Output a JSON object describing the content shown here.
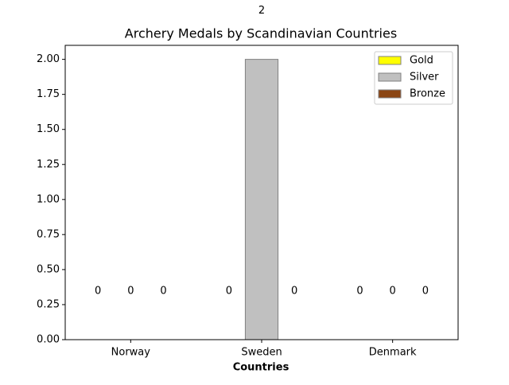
{
  "chart_data": {
    "type": "bar",
    "title": "Archery Medals by Scandinavian Countries",
    "xlabel": "Countries",
    "categories": [
      "Norway",
      "Sweden",
      "Denmark"
    ],
    "series": [
      {
        "name": "Gold",
        "color": "#ffff00",
        "values": [
          0,
          0,
          0
        ]
      },
      {
        "name": "Silver",
        "color": "#c0c0c0",
        "values": [
          0,
          2,
          0
        ]
      },
      {
        "name": "Bronze",
        "color": "#8b4513",
        "values": [
          0,
          0,
          0
        ]
      }
    ],
    "ylim": [
      0,
      2.1
    ],
    "yticks": [
      {
        "value": 0,
        "label": "0.00"
      },
      {
        "value": 0.25,
        "label": "0.25"
      },
      {
        "value": 0.5,
        "label": "0.50"
      },
      {
        "value": 0.75,
        "label": "0.75"
      },
      {
        "value": 1,
        "label": "1.00"
      },
      {
        "value": 1.25,
        "label": "1.25"
      },
      {
        "value": 1.5,
        "label": "1.50"
      },
      {
        "value": 1.75,
        "label": "1.75"
      },
      {
        "value": 2,
        "label": "2.00"
      }
    ],
    "legend": "upper right"
  }
}
